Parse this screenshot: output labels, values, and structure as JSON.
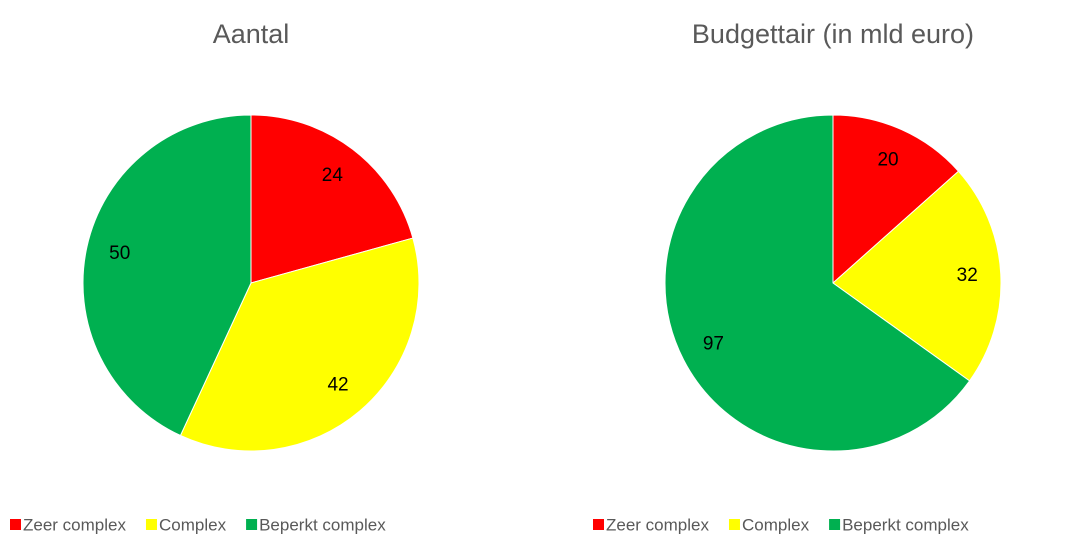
{
  "chart_data": [
    {
      "type": "pie",
      "title": "Aantal",
      "categories": [
        "Zeer complex",
        "Complex",
        "Beperkt complex"
      ],
      "values": [
        24,
        42,
        50
      ],
      "colors": [
        "#ff0000",
        "#ffff00",
        "#00b050"
      ]
    },
    {
      "type": "pie",
      "title": "Budgettair (in mld euro)",
      "categories": [
        "Zeer complex",
        "Complex",
        "Beperkt complex"
      ],
      "values": [
        20,
        32,
        97
      ],
      "colors": [
        "#ff0000",
        "#ffff00",
        "#00b050"
      ]
    }
  ]
}
